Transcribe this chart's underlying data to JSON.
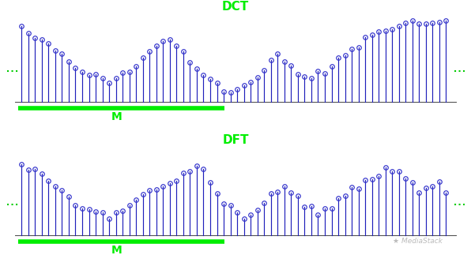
{
  "title_dct": "DCT",
  "title_dft": "DFT",
  "label_m": "M",
  "bg_color": "#ffffff",
  "stem_color": "#2020bb",
  "marker_color": "#3333cc",
  "title_color": "#00ee00",
  "m_line_color": "#00ee00",
  "dash_color": "#00cc00",
  "n_points": 64,
  "dct_values": [
    0.92,
    0.87,
    0.82,
    0.76,
    0.7,
    0.64,
    0.55,
    0.48,
    0.42,
    0.38,
    0.35,
    0.32,
    0.3,
    0.28,
    0.3,
    0.34,
    0.4,
    0.47,
    0.54,
    0.62,
    0.68,
    0.72,
    0.75,
    0.68,
    0.6,
    0.5,
    0.42,
    0.36,
    0.3,
    0.22,
    0.17,
    0.12,
    0.16,
    0.2,
    0.25,
    0.32,
    0.4,
    0.48,
    0.55,
    0.5,
    0.44,
    0.38,
    0.33,
    0.3,
    0.34,
    0.38,
    0.44,
    0.5,
    0.57,
    0.64,
    0.71,
    0.77,
    0.82,
    0.86,
    0.89,
    0.92,
    0.94,
    0.96,
    0.97,
    0.96,
    0.95,
    0.97,
    0.97,
    0.99
  ],
  "dft_values": [
    0.9,
    0.84,
    0.79,
    0.73,
    0.66,
    0.59,
    0.52,
    0.45,
    0.4,
    0.36,
    0.33,
    0.3,
    0.27,
    0.24,
    0.26,
    0.3,
    0.36,
    0.42,
    0.48,
    0.54,
    0.6,
    0.64,
    0.67,
    0.72,
    0.78,
    0.82,
    0.85,
    0.78,
    0.68,
    0.55,
    0.42,
    0.32,
    0.24,
    0.2,
    0.26,
    0.34,
    0.42,
    0.5,
    0.55,
    0.58,
    0.52,
    0.44,
    0.38,
    0.32,
    0.28,
    0.32,
    0.38,
    0.44,
    0.5,
    0.56,
    0.62,
    0.68,
    0.73,
    0.77,
    0.8,
    0.78,
    0.74,
    0.68,
    0.6,
    0.52,
    0.58,
    0.64,
    0.68,
    0.55
  ],
  "figsize": [
    5.96,
    3.23
  ],
  "dpi": 100
}
